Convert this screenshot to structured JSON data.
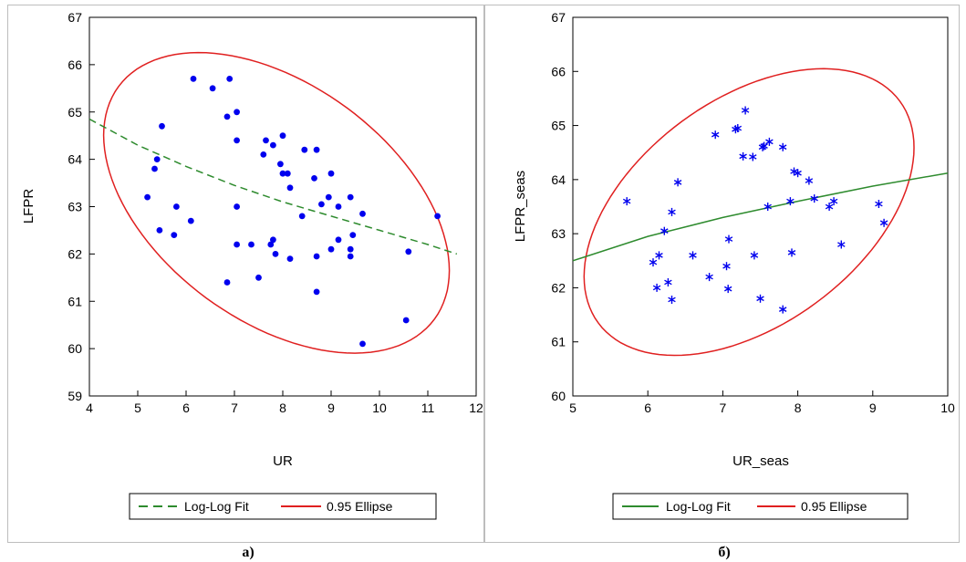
{
  "panels": [
    {
      "caption": "а)",
      "legend": {
        "items": [
          {
            "label": "Log-Log Fit"
          },
          {
            "label": "0.95 Ellipse"
          }
        ]
      }
    },
    {
      "caption": "б)",
      "legend": {
        "items": [
          {
            "label": "Log-Log Fit"
          },
          {
            "label": "0.95 Ellipse"
          }
        ]
      }
    }
  ],
  "chart_data": [
    {
      "type": "scatter",
      "title": "",
      "xlabel": "UR",
      "ylabel": "LFPR",
      "xlim": [
        4,
        12
      ],
      "ylim": [
        59,
        67
      ],
      "xticks": [
        4,
        5,
        6,
        7,
        8,
        9,
        10,
        11,
        12
      ],
      "yticks": [
        59,
        60,
        61,
        62,
        63,
        64,
        65,
        66,
        67
      ],
      "grid": false,
      "legend_position": "bottom",
      "marker": "dot",
      "colors": {
        "points": "#0000ee",
        "fit": "#2e8b2e",
        "ellipse": "#e02020"
      },
      "points": [
        [
          6.15,
          65.7
        ],
        [
          6.55,
          65.5
        ],
        [
          6.9,
          65.7
        ],
        [
          6.85,
          64.9
        ],
        [
          7.05,
          65.0
        ],
        [
          5.5,
          64.7
        ],
        [
          5.4,
          64.0
        ],
        [
          5.35,
          63.8
        ],
        [
          5.2,
          63.2
        ],
        [
          5.45,
          62.5
        ],
        [
          5.8,
          63.0
        ],
        [
          5.75,
          62.4
        ],
        [
          6.1,
          62.7
        ],
        [
          6.85,
          61.4
        ],
        [
          7.05,
          64.4
        ],
        [
          7.05,
          63.0
        ],
        [
          7.05,
          62.2
        ],
        [
          7.35,
          62.2
        ],
        [
          7.5,
          61.5
        ],
        [
          7.6,
          64.1
        ],
        [
          7.65,
          64.4
        ],
        [
          7.8,
          64.3
        ],
        [
          7.95,
          63.9
        ],
        [
          8.0,
          63.7
        ],
        [
          8.0,
          64.5
        ],
        [
          8.1,
          63.7
        ],
        [
          7.8,
          62.3
        ],
        [
          7.75,
          62.2
        ],
        [
          7.85,
          62.0
        ],
        [
          8.15,
          61.9
        ],
        [
          8.15,
          63.4
        ],
        [
          8.4,
          62.8
        ],
        [
          8.45,
          64.2
        ],
        [
          8.65,
          63.6
        ],
        [
          8.7,
          64.2
        ],
        [
          8.7,
          61.95
        ],
        [
          8.7,
          61.2
        ],
        [
          8.8,
          63.05
        ],
        [
          8.95,
          63.2
        ],
        [
          9.0,
          63.7
        ],
        [
          9.0,
          62.1
        ],
        [
          9.15,
          63.0
        ],
        [
          9.15,
          62.3
        ],
        [
          9.4,
          63.2
        ],
        [
          9.45,
          62.4
        ],
        [
          9.4,
          62.1
        ],
        [
          9.4,
          61.95
        ],
        [
          9.65,
          62.85
        ],
        [
          9.65,
          60.1
        ],
        [
          10.6,
          62.05
        ],
        [
          10.55,
          60.6
        ],
        [
          11.2,
          62.8
        ]
      ],
      "fit_line": {
        "label": "Log-Log Fit",
        "x": [
          4,
          5,
          6,
          7,
          8,
          9,
          10,
          11,
          11.6
        ],
        "y": [
          64.85,
          64.3,
          63.85,
          63.45,
          63.1,
          62.8,
          62.5,
          62.2,
          62.0
        ]
      },
      "ellipse": {
        "label": "0.95 Ellipse",
        "center": [
          7.87,
          63.08
        ],
        "extremes": {
          "min_x": 4.3,
          "max_x": 11.45,
          "min_y": 59.9,
          "max_y": 66.25
        }
      }
    },
    {
      "type": "scatter",
      "title": "",
      "xlabel": "UR_seas",
      "ylabel": "LFPR_seas",
      "xlim": [
        5,
        10
      ],
      "ylim": [
        60,
        67
      ],
      "xticks": [
        5,
        6,
        7,
        8,
        9,
        10
      ],
      "yticks": [
        60,
        61,
        62,
        63,
        64,
        65,
        66,
        67
      ],
      "grid": false,
      "legend_position": "bottom",
      "marker": "asterisk",
      "colors": {
        "points": "#0000ee",
        "fit": "#2e8b2e",
        "ellipse": "#e02020"
      },
      "points": [
        [
          5.72,
          63.6
        ],
        [
          6.07,
          62.47
        ],
        [
          6.12,
          62.0
        ],
        [
          6.15,
          62.6
        ],
        [
          6.22,
          63.05
        ],
        [
          6.27,
          62.1
        ],
        [
          6.32,
          63.4
        ],
        [
          6.32,
          61.78
        ],
        [
          6.4,
          63.95
        ],
        [
          6.6,
          62.6
        ],
        [
          6.82,
          62.2
        ],
        [
          6.9,
          64.83
        ],
        [
          7.05,
          62.4
        ],
        [
          7.07,
          61.98
        ],
        [
          7.08,
          62.9
        ],
        [
          7.17,
          64.93
        ],
        [
          7.2,
          64.95
        ],
        [
          7.27,
          64.43
        ],
        [
          7.3,
          65.28
        ],
        [
          7.4,
          64.42
        ],
        [
          7.42,
          62.6
        ],
        [
          7.5,
          61.8
        ],
        [
          7.53,
          64.6
        ],
        [
          7.55,
          64.62
        ],
        [
          7.6,
          63.5
        ],
        [
          7.62,
          64.7
        ],
        [
          7.8,
          64.6
        ],
        [
          7.8,
          61.6
        ],
        [
          7.9,
          63.6
        ],
        [
          7.92,
          62.65
        ],
        [
          7.95,
          64.15
        ],
        [
          8.0,
          64.12
        ],
        [
          8.15,
          63.98
        ],
        [
          8.22,
          63.65
        ],
        [
          8.42,
          63.5
        ],
        [
          8.48,
          63.6
        ],
        [
          8.58,
          62.8
        ],
        [
          9.08,
          63.55
        ],
        [
          9.15,
          63.2
        ]
      ],
      "fit_line": {
        "label": "Log-Log Fit",
        "x": [
          5,
          6,
          7,
          8,
          9,
          10
        ],
        "y": [
          62.5,
          62.95,
          63.3,
          63.6,
          63.88,
          64.12
        ]
      },
      "ellipse": {
        "label": "0.95 Ellipse",
        "center": [
          7.35,
          63.4
        ],
        "extremes": {
          "min_x": 5.15,
          "max_x": 9.55,
          "min_y": 60.75,
          "max_y": 66.05
        }
      }
    }
  ]
}
